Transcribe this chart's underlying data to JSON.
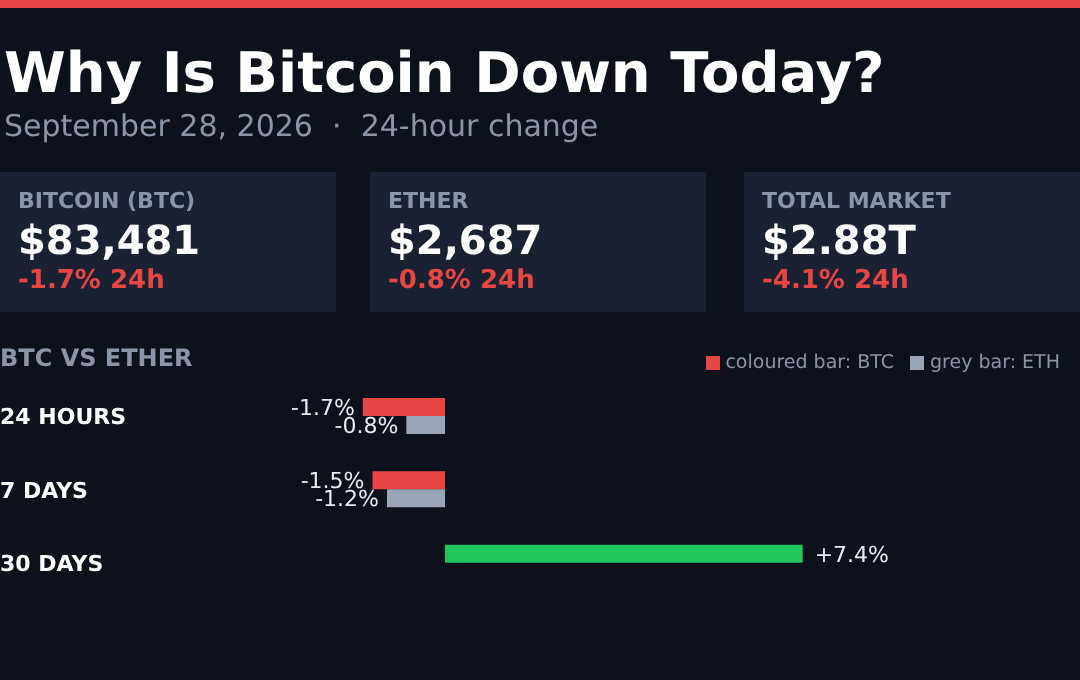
{
  "chart_data": [
    {
      "type": "other",
      "title": "Why Is Bitcoin Down Today?",
      "subtitle": "September 28, 2026  ·  24-hour change",
      "annotations": [
        "BITCOIN (BTC)",
        "$83,481",
        "-1.7% 24h",
        "ETHER",
        "$2,687",
        "-0.8% 24h",
        "TOTAL MARKET",
        "$2.88T",
        "-4.1% 24h"
      ]
    },
    {
      "type": "bar",
      "orientation": "horizontal",
      "title": "BTC VS ETHER",
      "categories": [
        "24 HOURS",
        "7 DAYS",
        "30 DAYS"
      ],
      "series": [
        {
          "name": "coloured bar: BTC",
          "color": "#e84545",
          "colors": [
            "#e84545",
            "#e84545",
            "#22c55e"
          ],
          "values": [
            -1.7,
            -1.5,
            7.4
          ],
          "value_labels": [
            "-1.7%",
            "-1.5%",
            "+7.4%"
          ]
        },
        {
          "name": "grey bar: ETH",
          "color": "#9aa5b8",
          "values": [
            -0.8,
            -1.2,
            null
          ],
          "value_labels": [
            "-0.8%",
            "-1.2%",
            null
          ]
        }
      ],
      "tick_labels": "y",
      "legend": "top right"
    }
  ]
}
